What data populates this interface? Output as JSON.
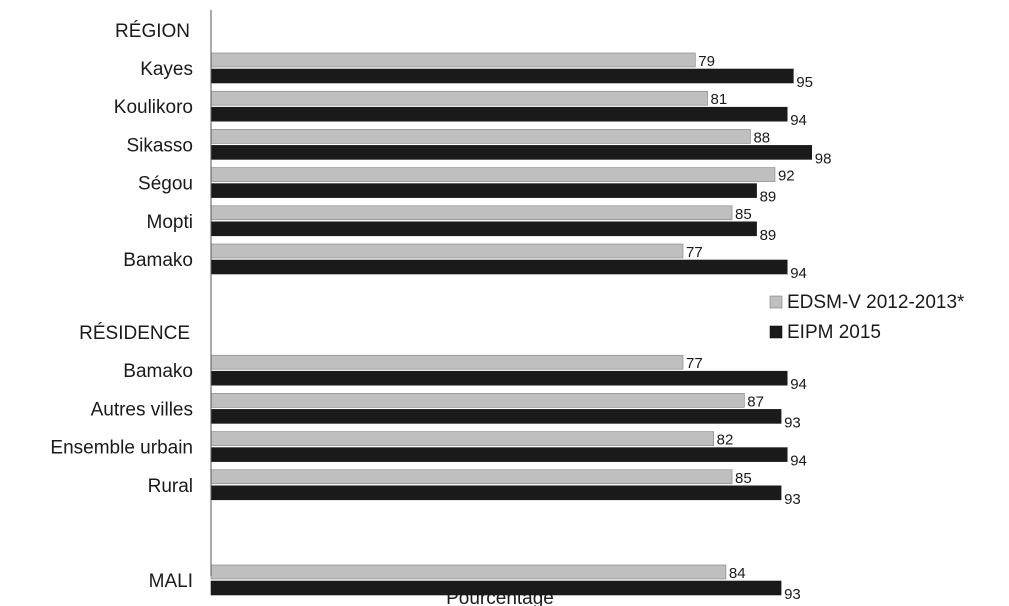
{
  "chart_data": {
    "type": "bar",
    "orientation": "horizontal",
    "xlabel": "Pourcentage",
    "xlim": [
      0,
      115
    ],
    "grid": false,
    "legend_position": "right",
    "series": [
      {
        "name": "EDSM-V 2012-2013*",
        "color": "#bfbfbf"
      },
      {
        "name": "EIPM 2015",
        "color": "#1a1a1a"
      }
    ],
    "groups": [
      {
        "heading": "RÉGION",
        "rows": [
          {
            "label": "Kayes",
            "values": [
              79,
              95
            ]
          },
          {
            "label": "Koulikoro",
            "values": [
              81,
              94
            ]
          },
          {
            "label": "Sikasso",
            "values": [
              88,
              98
            ]
          },
          {
            "label": "Ségou",
            "values": [
              92,
              89
            ]
          },
          {
            "label": "Mopti",
            "values": [
              85,
              89
            ]
          },
          {
            "label": "Bamako",
            "values": [
              77,
              94
            ]
          }
        ]
      },
      {
        "heading": "RÉSIDENCE",
        "rows": [
          {
            "label": "Bamako",
            "values": [
              77,
              94
            ]
          },
          {
            "label": "Autres villes",
            "values": [
              87,
              93
            ]
          },
          {
            "label": "Ensemble urbain",
            "values": [
              82,
              94
            ]
          },
          {
            "label": "Rural",
            "values": [
              85,
              93
            ]
          }
        ]
      },
      {
        "heading": "",
        "rows": [
          {
            "label": "MALI",
            "values": [
              84,
              93
            ]
          }
        ]
      }
    ]
  }
}
